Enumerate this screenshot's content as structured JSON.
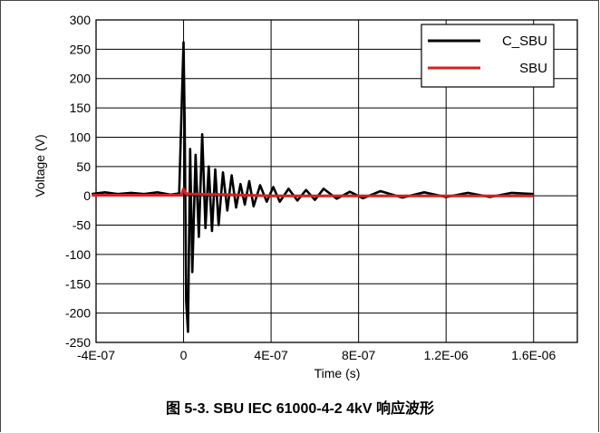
{
  "caption": "图 5-3. SBU IEC 61000-4-2 4kV 响应波形",
  "chart_data": {
    "type": "line",
    "xlabel": "Time (s)",
    "ylabel": "Voltage (V)",
    "xlim": [
      -4e-07,
      1.8e-06
    ],
    "ylim": [
      -250,
      300
    ],
    "x_ticks": [
      -4e-07,
      0,
      4e-07,
      8e-07,
      1.2e-06,
      1.6e-06,
      1.8e-06
    ],
    "x_tick_labels": [
      "-4E-07",
      "0",
      "4E-07",
      "8E-07",
      "1.2E-06",
      "1.6E-06",
      ""
    ],
    "y_ticks": [
      -250,
      -200,
      -150,
      -100,
      -50,
      0,
      50,
      100,
      150,
      200,
      250,
      300
    ],
    "y_tick_labels": [
      "-250",
      "-200",
      "-150",
      "-100",
      "-50",
      "0",
      "50",
      "100",
      "150",
      "200",
      "250",
      "300"
    ],
    "grid": true,
    "legend_position": "top-right",
    "series": [
      {
        "name": "C_SBU",
        "color": "#000000",
        "x": [
          -4.2e-07,
          -3.6e-07,
          -3e-07,
          -2.4e-07,
          -1.8e-07,
          -1.2e-07,
          -6e-08,
          -2e-08,
          0,
          5e-09,
          1.2e-08,
          2e-08,
          3e-08,
          4e-08,
          5.5e-08,
          7e-08,
          8.5e-08,
          1e-07,
          1.15e-07,
          1.3e-07,
          1.45e-07,
          1.6e-07,
          1.8e-07,
          2e-07,
          2.2e-07,
          2.4e-07,
          2.6e-07,
          2.8e-07,
          3e-07,
          3.2e-07,
          3.5e-07,
          3.8e-07,
          4.1e-07,
          4.4e-07,
          4.8e-07,
          5.2e-07,
          5.6e-07,
          6e-07,
          6.4e-07,
          7e-07,
          7.6e-07,
          8.2e-07,
          9e-07,
          1e-06,
          1.1e-06,
          1.2e-06,
          1.3e-06,
          1.4e-06,
          1.5e-06,
          1.6e-06
        ],
        "y": [
          3,
          6,
          3,
          5,
          3,
          6,
          2,
          4,
          262,
          120,
          -180,
          -232,
          80,
          -130,
          70,
          -70,
          105,
          -55,
          50,
          -60,
          45,
          -50,
          40,
          -25,
          35,
          -20,
          20,
          -15,
          25,
          -18,
          18,
          -10,
          15,
          -10,
          12,
          -8,
          10,
          -7,
          12,
          -5,
          7,
          -4,
          8,
          -3,
          6,
          -2,
          5,
          -2,
          5,
          3
        ]
      },
      {
        "name": "SBU",
        "color": "#d62020",
        "x": [
          -4.2e-07,
          -2e-07,
          -1e-08,
          0,
          1e-08,
          4e-08,
          2e-07,
          4e-07,
          8e-07,
          1.2e-06,
          1.6e-06
        ],
        "y": [
          1,
          1,
          1,
          12,
          4,
          3,
          2,
          0,
          0,
          0,
          0
        ]
      }
    ]
  }
}
